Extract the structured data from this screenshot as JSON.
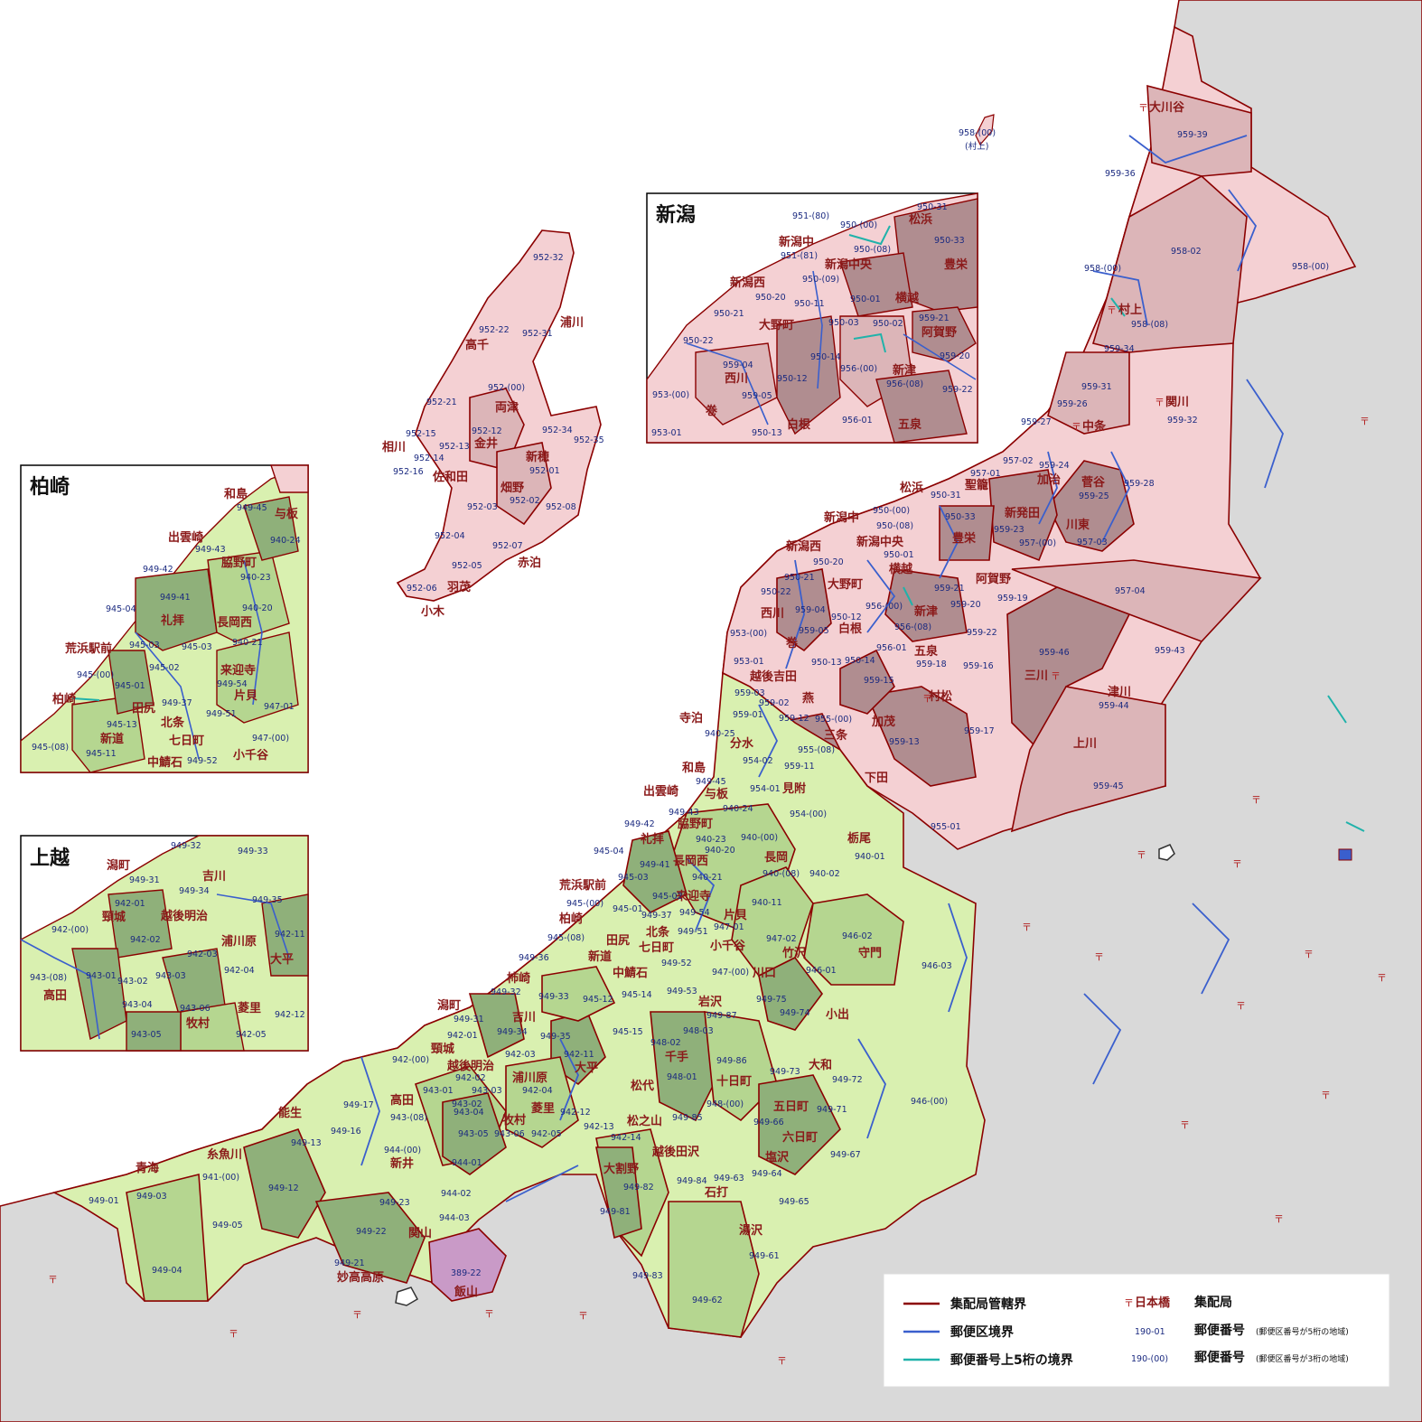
{
  "colors": {
    "sea": "#ffffff",
    "outside_land": "#d9d9d9",
    "delivery_border": "#8b0000",
    "postal_border": "#3a5fcd",
    "five_digit_border": "#20b2aa",
    "pink_light": "#f4d0d3",
    "pink_mid": "#dcb5b8",
    "pink_dark": "#b08d90",
    "green_light": "#d9f0b0",
    "green_mid": "#b5d690",
    "green_dark": "#8fb07a",
    "purple": "#c99ac7",
    "office_text": "#8b1a1a",
    "code_text": "#1b2a80"
  },
  "insets": {
    "niigata": {
      "title": "新潟"
    },
    "kashiwazaki": {
      "title": "柏崎"
    },
    "joetsu": {
      "title": "上越"
    }
  },
  "legend": {
    "delivery_border": "集配局管轄界",
    "postal_border": "郵便区境界",
    "five_digit_border": "郵便番号上5桁の境界",
    "office_sample": "日本橋",
    "office_label": "集配局",
    "code5_sample": "190-01",
    "code5_label": "郵便番号",
    "code5_note": "(郵便区番号が5桁の地域)",
    "code3_sample": "190-(00)",
    "code3_label": "郵便番号",
    "code3_note": "(郵便区番号が3桁の地域)"
  },
  "main_offices": [
    "大川谷",
    "村上",
    "関川",
    "中条",
    "加治",
    "菅谷",
    "川東",
    "新発田",
    "豊栄",
    "松浜",
    "聖籠",
    "新潟中",
    "新潟中央",
    "新潟西",
    "横越",
    "阿賀野",
    "大野町",
    "白根",
    "西川",
    "巻",
    "新津",
    "五泉",
    "村松",
    "三川",
    "津川",
    "上川",
    "加茂",
    "三条",
    "下田",
    "燕",
    "越後吉田",
    "寺泊",
    "分水",
    "見附",
    "栃尾",
    "長岡",
    "和島",
    "出雲崎",
    "与板",
    "脇野町",
    "礼拝",
    "長岡西",
    "来迎寺",
    "荒浜駅前",
    "柏崎",
    "田尻",
    "新道",
    "北条",
    "七日町",
    "片貝",
    "小千谷",
    "竹沢",
    "守門",
    "川口",
    "中鯖石",
    "柿崎",
    "岩沢",
    "小出",
    "潟町",
    "吉川",
    "頸城",
    "越後明治",
    "浦川原",
    "大平",
    "千手",
    "十日町",
    "松代",
    "菱里",
    "牧村",
    "高田",
    "能生",
    "糸魚川",
    "青海",
    "新井",
    "関山",
    "妙高高原",
    "飯山",
    "松之山",
    "大割野",
    "越後田沢",
    "五日町",
    "六日町",
    "塩沢",
    "石打",
    "湯沢",
    "大和",
    "高千",
    "両津",
    "金井",
    "新穂",
    "畑野",
    "佐和田",
    "相川",
    "羽茂",
    "小木",
    "赤泊",
    "浦川"
  ],
  "main_codes": [
    "959-39",
    "959-36",
    "958-02",
    "958-00",
    "958-(00)",
    "958-(08)",
    "959-34",
    "959-31",
    "959-32",
    "959-26",
    "959-27",
    "959-24",
    "959-25",
    "959-28",
    "957-01",
    "957-02",
    "957-(00)",
    "957-03",
    "957-04",
    "959-23",
    "950-31",
    "950-33",
    "950-(00)",
    "950-(08)",
    "950-01",
    "950-21",
    "950-20",
    "950-22",
    "959-04",
    "950-12",
    "956-(00)",
    "959-21",
    "959-20",
    "959-19",
    "959-22",
    "959-05",
    "953-(00)",
    "956-(08)",
    "953-01",
    "950-13",
    "950-14",
    "956-01",
    "959-18",
    "959-16",
    "959-46",
    "959-43",
    "959-15",
    "959-44",
    "959-03",
    "959-02",
    "959-17",
    "959-01",
    "955-(00)",
    "959-13",
    "959-12",
    "940-25",
    "954-02",
    "955-(08)",
    "959-11",
    "954-01",
    "954-(00)",
    "955-01",
    "959-45",
    "949-45",
    "949-43",
    "940-24",
    "940-23",
    "940-(00)",
    "940-20",
    "940-01",
    "940-(08)",
    "940-02",
    "940-21",
    "940-11",
    "949-42",
    "949-41",
    "945-04",
    "945-03",
    "945-02",
    "945-(00)",
    "945-01",
    "949-37",
    "949-54",
    "949-51",
    "947-01",
    "947-02",
    "945-(08)",
    "949-36",
    "946-02",
    "946-03",
    "946-01",
    "947-(00)",
    "949-52",
    "949-53",
    "949-75",
    "949-32",
    "949-33",
    "945-12",
    "945-14",
    "945-15",
    "949-87",
    "949-74",
    "949-31",
    "949-34",
    "949-35",
    "942-01",
    "942-03",
    "942-11",
    "948-03",
    "948-02",
    "949-86",
    "949-73",
    "949-72",
    "942-(00)",
    "942-02",
    "942-04",
    "942-12",
    "948-01",
    "948-(00)",
    "949-71",
    "946-(00)",
    "949-17",
    "943-01",
    "943-02",
    "943-03",
    "943-04",
    "943-05",
    "943-06",
    "943-(08)",
    "942-05",
    "942-13",
    "942-14",
    "949-85",
    "949-66",
    "949-67",
    "949-16",
    "949-13",
    "944-(00)",
    "944-01",
    "944-02",
    "944-03",
    "949-84",
    "949-63",
    "949-64",
    "949-65",
    "949-01",
    "949-03",
    "941-(00)",
    "949-12",
    "949-23",
    "949-82",
    "949-81",
    "949-05",
    "949-22",
    "949-21",
    "389-22",
    "949-61",
    "949-83",
    "949-04",
    "949-62",
    "952-32",
    "952-22",
    "952-31",
    "952-(00)",
    "952-21",
    "952-12",
    "952-15",
    "952-13",
    "952-14",
    "952-16",
    "952-34",
    "952-35",
    "952-01",
    "952-02",
    "952-03",
    "952-08",
    "952-04",
    "952-07",
    "952-05",
    "952-06",
    "958-(00)",
    "(村上)"
  ],
  "niigata_inset_codes": [
    "951-(80)",
    "950-(00)",
    "950-31",
    "950-33",
    "951-(81)",
    "950-(08)",
    "950-(09)",
    "950-20",
    "950-11",
    "950-01",
    "950-21",
    "950-22",
    "950-03",
    "950-02",
    "959-21",
    "959-04",
    "950-14",
    "956-(00)",
    "959-20",
    "959-05",
    "950-12",
    "956-(08)",
    "959-22",
    "953-(00)",
    "956-01",
    "953-01",
    "950-13"
  ],
  "niigata_inset_offices": [
    "新潟中",
    "新潟中央",
    "松浜",
    "豊栄",
    "新潟西",
    "横越",
    "大野町",
    "阿賀野",
    "西川",
    "新津",
    "巻",
    "白根",
    "五泉"
  ],
  "kashiwazaki_inset_codes": [
    "949-45",
    "949-43",
    "940-24",
    "949-42",
    "940-23",
    "945-04",
    "949-41",
    "940-20",
    "945-03",
    "945-03",
    "940-21",
    "945-02",
    "945-(00)",
    "949-54",
    "945-01",
    "949-37",
    "947-01",
    "945-13",
    "949-51",
    "945-(08)",
    "947-(00)",
    "945-11",
    "949-52"
  ],
  "kashiwazaki_inset_offices": [
    "和島",
    "与板",
    "出雲崎",
    "脇野町",
    "礼拝",
    "長岡西",
    "荒浜駅前",
    "来迎寺",
    "柏崎",
    "田尻",
    "片貝",
    "北条",
    "新道",
    "七日町",
    "小千谷",
    "中鯖石"
  ],
  "joetsu_inset_codes": [
    "949-32",
    "949-33",
    "949-31",
    "949-34",
    "942-01",
    "949-35",
    "942-(00)",
    "942-02",
    "942-11",
    "942-03",
    "943-(08)",
    "943-01",
    "942-04",
    "943-02",
    "943-03",
    "943-04",
    "943-06",
    "942-12",
    "943-05",
    "942-05"
  ],
  "joetsu_inset_offices": [
    "潟町",
    "吉川",
    "頸城",
    "越後明治",
    "浦川原",
    "大平",
    "高田",
    "菱里",
    "牧村"
  ]
}
